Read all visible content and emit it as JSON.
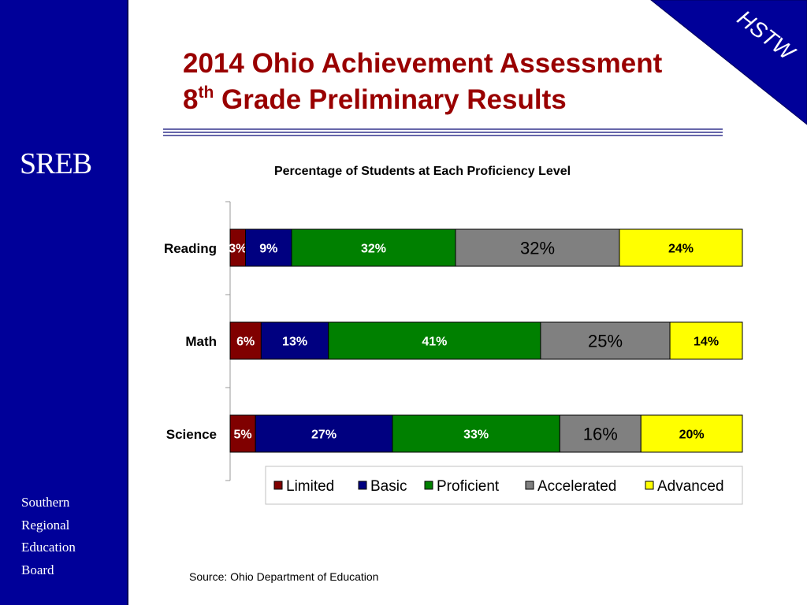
{
  "slide": {
    "title_line1": "2014 Ohio Achievement Assessment",
    "title_line2_prefix": "8",
    "title_line2_sup": "th",
    "title_line2_rest": " Grade Preliminary Results",
    "corner_badge": "HSTW",
    "logo_text": "SREB",
    "org_lines": [
      "Southern",
      "Regional",
      "Education",
      "Board"
    ],
    "source": "Source: Ohio Department of Education"
  },
  "colors": {
    "sidebar": "#000099",
    "title": "#990000",
    "corner": "#000099"
  },
  "chart_data": {
    "type": "bar",
    "orientation": "horizontal",
    "stacked": true,
    "title": "Percentage of Students at Each Proficiency Level",
    "categories": [
      "Reading",
      "Math",
      "Science"
    ],
    "series": [
      {
        "name": "Limited",
        "color": "#800000",
        "label_color": "#ffffff",
        "values": [
          3,
          6,
          5
        ],
        "labels": [
          "3%",
          "6%",
          "5%"
        ]
      },
      {
        "name": "Basic",
        "color": "#000080",
        "label_color": "#ffffff",
        "values": [
          9,
          13,
          27
        ],
        "labels": [
          "9%",
          "13%",
          "27%"
        ]
      },
      {
        "name": "Proficient",
        "color": "#008000",
        "label_color": "#ffffff",
        "values": [
          32,
          41,
          33
        ],
        "labels": [
          "32%",
          "41%",
          "33%"
        ]
      },
      {
        "name": "Accelerated",
        "color": "#808080",
        "label_color": "#000000",
        "values": [
          32,
          25,
          16
        ],
        "labels": [
          "32%",
          "25%",
          "16%"
        ]
      },
      {
        "name": "Advanced",
        "color": "#ffff00",
        "label_color": "#000000",
        "values": [
          24,
          14,
          20
        ],
        "labels": [
          "24%",
          "14%",
          "20%"
        ]
      }
    ],
    "legend_position": "bottom-right",
    "grid": false
  }
}
